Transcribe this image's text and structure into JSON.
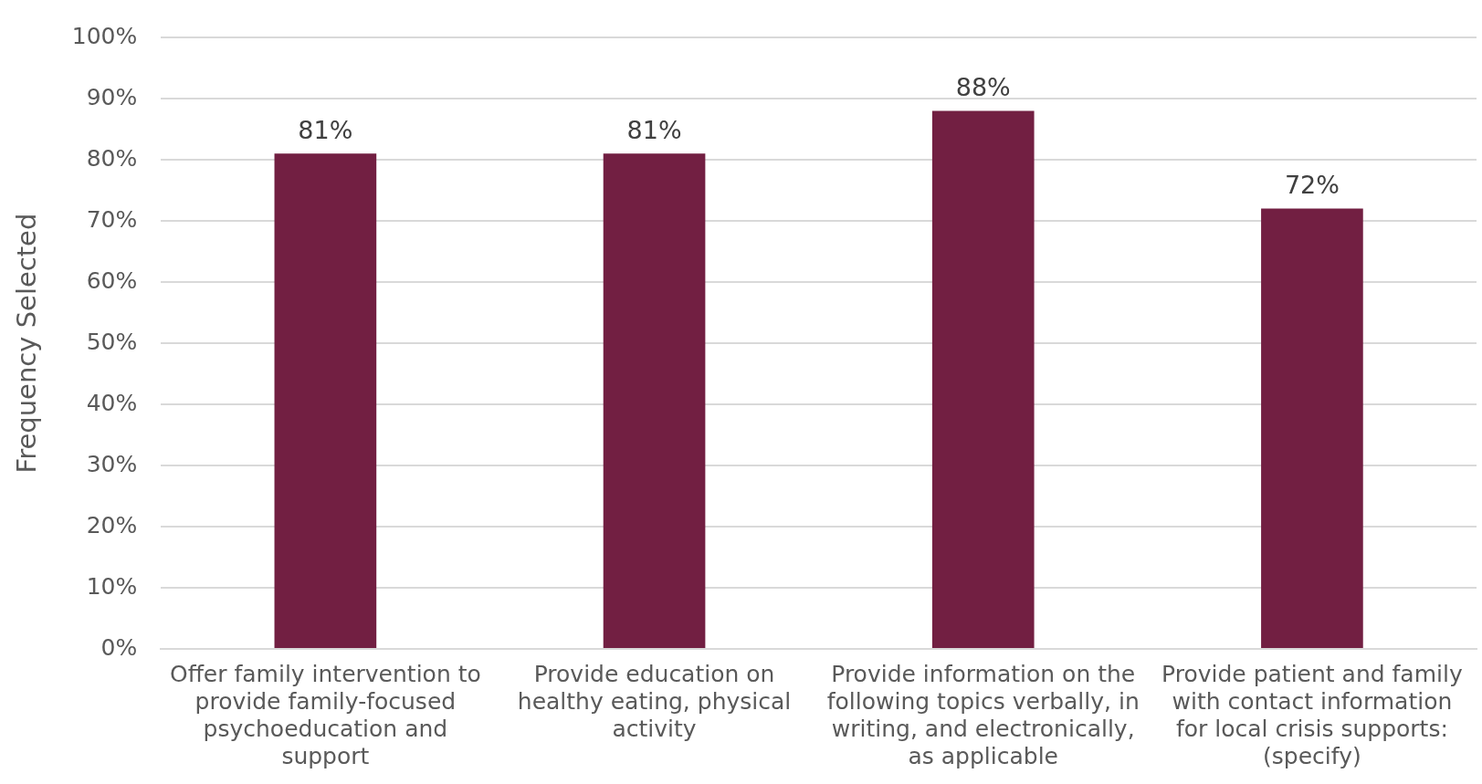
{
  "chart_data": {
    "type": "bar",
    "ylabel": "Frequency Selected",
    "categories": [
      "Offer family intervention to provide family-focused psychoeducation and support",
      "Provide education on healthy eating, physical activity",
      "Provide information on the following topics verbally, in writing, and electronically, as applicable",
      "Provide patient and family with contact information for local crisis supports: (specify)"
    ],
    "values": [
      81,
      81,
      88,
      72
    ],
    "color": "#721f42",
    "value_labels": [
      "81%",
      "81%",
      "88%",
      "72%"
    ],
    "ylim": [
      0,
      100
    ],
    "yticks": [
      {
        "value": 0,
        "label": "0%"
      },
      {
        "value": 10,
        "label": "10%"
      },
      {
        "value": 20,
        "label": "20%"
      },
      {
        "value": 30,
        "label": "30%"
      },
      {
        "value": 40,
        "label": "40%"
      },
      {
        "value": 50,
        "label": "50%"
      },
      {
        "value": 60,
        "label": "60%"
      },
      {
        "value": 70,
        "label": "70%"
      },
      {
        "value": 80,
        "label": "80%"
      },
      {
        "value": 90,
        "label": "90%"
      },
      {
        "value": 100,
        "label": "100%"
      }
    ],
    "grid": "y",
    "legend": false
  }
}
